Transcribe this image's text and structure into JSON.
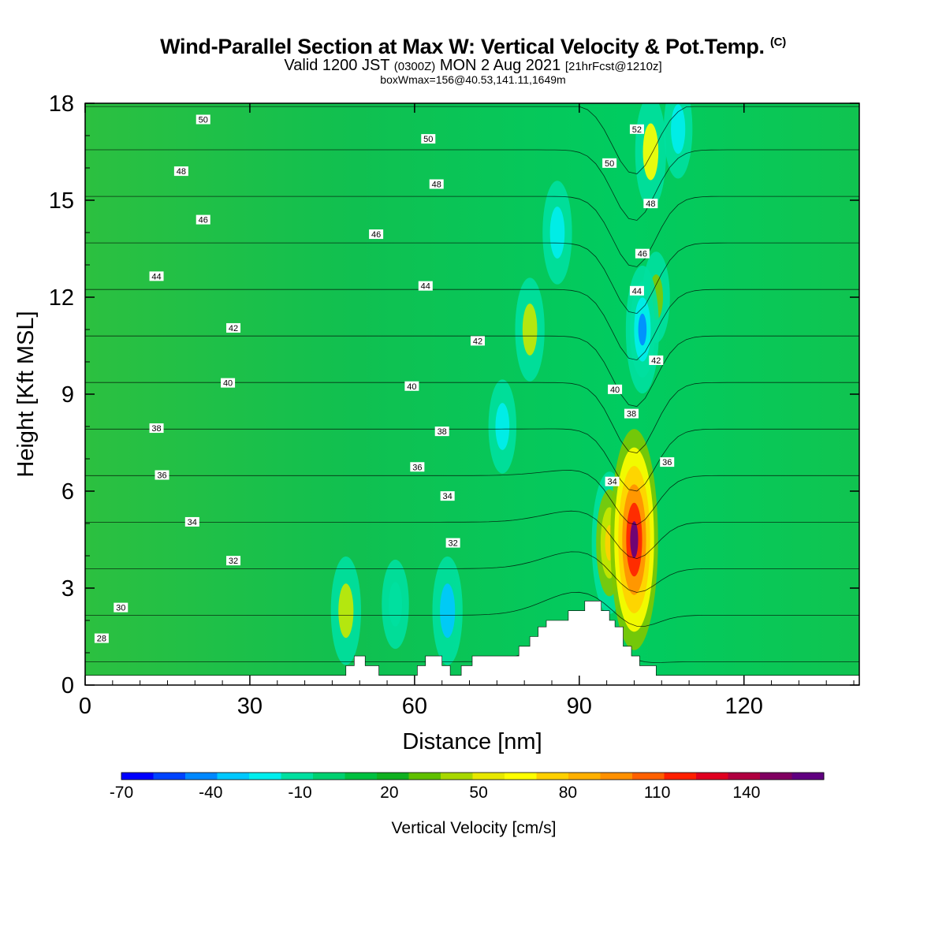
{
  "header": {
    "title": "Wind-Parallel Section at Max W: Vertical Velocity & Pot.Temp.",
    "title_mark": "(C)",
    "valid_prefix": "Valid 1200 JST",
    "valid_utc": "(0300Z)",
    "valid_date": "MON 2 Aug 2021",
    "forecast_tag": "[21hrFcst@1210z]",
    "box_info": "boxWmax=156@40.53,141.11,1649m"
  },
  "colorbar": {
    "label": "Vertical Velocity [cm/s]",
    "tick_labels": [
      "-70",
      "-40",
      "-10",
      "20",
      "50",
      "80",
      "110",
      "140"
    ],
    "colors": [
      "#0000ff",
      "#0044ff",
      "#0088ff",
      "#00c8ff",
      "#00eeee",
      "#00e0a0",
      "#00d070",
      "#00c040",
      "#10b020",
      "#60c000",
      "#a8d800",
      "#e8e800",
      "#ffff00",
      "#ffd000",
      "#ffb000",
      "#ff9000",
      "#ff6000",
      "#ff2000",
      "#e00020",
      "#b00040",
      "#800060",
      "#600080"
    ]
  },
  "chart_data": {
    "type": "heatmap",
    "xlabel": "Distance [nm]",
    "ylabel": "Height [Kft MSL]",
    "xlim": [
      0,
      141
    ],
    "ylim": [
      0,
      18
    ],
    "x_ticks": [
      0,
      30,
      60,
      90,
      120
    ],
    "y_ticks": [
      0,
      3,
      6,
      9,
      12,
      15,
      18
    ],
    "shaded_field": "Vertical Velocity [cm/s]",
    "max_updraft": {
      "x": 99.5,
      "y": 4.5,
      "value": 156
    },
    "updrafts": [
      {
        "x": 47.5,
        "y": 2.3,
        "value": 40
      },
      {
        "x": 81,
        "y": 11,
        "value": 35
      },
      {
        "x": 95.5,
        "y": 4.4,
        "value": 75
      },
      {
        "x": 100,
        "y": 4.5,
        "value": 156
      },
      {
        "x": 103,
        "y": 16.5,
        "value": 45
      },
      {
        "x": 104,
        "y": 12,
        "value": 22
      }
    ],
    "downdrafts": [
      {
        "x": 66,
        "y": 2.3,
        "value": -40
      },
      {
        "x": 56.5,
        "y": 2.5,
        "value": -20
      },
      {
        "x": 76,
        "y": 8,
        "value": -25
      },
      {
        "x": 86,
        "y": 14,
        "value": -35
      },
      {
        "x": 101.5,
        "y": 11,
        "value": -60
      },
      {
        "x": 108,
        "y": 17.2,
        "value": -30
      }
    ],
    "isentrope_labels": [
      {
        "x": 3,
        "y": 1.45,
        "text": "28"
      },
      {
        "x": 6.5,
        "y": 2.4,
        "text": "30"
      },
      {
        "x": 27,
        "y": 3.85,
        "text": "32"
      },
      {
        "x": 19.5,
        "y": 5.05,
        "text": "34"
      },
      {
        "x": 14,
        "y": 6.5,
        "text": "36"
      },
      {
        "x": 13,
        "y": 7.95,
        "text": "38"
      },
      {
        "x": 26,
        "y": 9.35,
        "text": "40"
      },
      {
        "x": 27,
        "y": 11.05,
        "text": "42"
      },
      {
        "x": 13,
        "y": 12.65,
        "text": "44"
      },
      {
        "x": 21.5,
        "y": 14.4,
        "text": "46"
      },
      {
        "x": 17.5,
        "y": 15.9,
        "text": "48"
      },
      {
        "x": 21.5,
        "y": 17.5,
        "text": "50"
      },
      {
        "x": 67,
        "y": 4.4,
        "text": "32"
      },
      {
        "x": 66,
        "y": 5.85,
        "text": "34"
      },
      {
        "x": 60.5,
        "y": 6.75,
        "text": "36"
      },
      {
        "x": 65,
        "y": 7.85,
        "text": "38"
      },
      {
        "x": 59.5,
        "y": 9.25,
        "text": "40"
      },
      {
        "x": 71.5,
        "y": 10.65,
        "text": "42"
      },
      {
        "x": 62,
        "y": 12.35,
        "text": "44"
      },
      {
        "x": 53,
        "y": 13.95,
        "text": "46"
      },
      {
        "x": 64,
        "y": 15.5,
        "text": "48"
      },
      {
        "x": 62.5,
        "y": 16.9,
        "text": "50"
      },
      {
        "x": 96,
        "y": 6.3,
        "text": "34"
      },
      {
        "x": 99.5,
        "y": 8.4,
        "text": "38"
      },
      {
        "x": 96.5,
        "y": 9.15,
        "text": "40"
      },
      {
        "x": 104,
        "y": 10.05,
        "text": "42"
      },
      {
        "x": 100.5,
        "y": 12.2,
        "text": "44"
      },
      {
        "x": 101.5,
        "y": 13.35,
        "text": "46"
      },
      {
        "x": 103,
        "y": 14.9,
        "text": "48"
      },
      {
        "x": 95.5,
        "y": 16.15,
        "text": "50"
      },
      {
        "x": 100.5,
        "y": 17.2,
        "text": "52"
      },
      {
        "x": 106,
        "y": 6.9,
        "text": "36"
      }
    ],
    "terrain": [
      [
        0,
        0.3
      ],
      [
        47.5,
        0.3
      ],
      [
        47.5,
        0.6
      ],
      [
        49,
        0.6
      ],
      [
        49,
        0.9
      ],
      [
        51,
        0.9
      ],
      [
        51,
        0.6
      ],
      [
        53.5,
        0.6
      ],
      [
        53.5,
        0.3
      ],
      [
        60.5,
        0.3
      ],
      [
        60.5,
        0.6
      ],
      [
        62,
        0.6
      ],
      [
        62,
        0.9
      ],
      [
        65,
        0.9
      ],
      [
        65,
        0.6
      ],
      [
        66.5,
        0.6
      ],
      [
        66.5,
        0.3
      ],
      [
        68.5,
        0.3
      ],
      [
        68.5,
        0.6
      ],
      [
        70.5,
        0.6
      ],
      [
        70.5,
        0.9
      ],
      [
        79,
        0.9
      ],
      [
        79,
        1.2
      ],
      [
        81,
        1.2
      ],
      [
        81,
        1.5
      ],
      [
        82.5,
        1.5
      ],
      [
        82.5,
        1.8
      ],
      [
        84,
        1.8
      ],
      [
        84,
        2.0
      ],
      [
        88,
        2.0
      ],
      [
        88,
        2.3
      ],
      [
        91,
        2.3
      ],
      [
        91,
        2.6
      ],
      [
        94,
        2.6
      ],
      [
        94,
        2.3
      ],
      [
        95.5,
        2.3
      ],
      [
        95.5,
        2.0
      ],
      [
        96.5,
        2.0
      ],
      [
        96.5,
        1.8
      ],
      [
        98,
        1.8
      ],
      [
        98,
        1.2
      ],
      [
        99.5,
        1.2
      ],
      [
        99.5,
        0.9
      ],
      [
        101,
        0.9
      ],
      [
        101,
        0.6
      ],
      [
        104,
        0.6
      ],
      [
        104,
        0.3
      ],
      [
        141,
        0.3
      ]
    ]
  }
}
